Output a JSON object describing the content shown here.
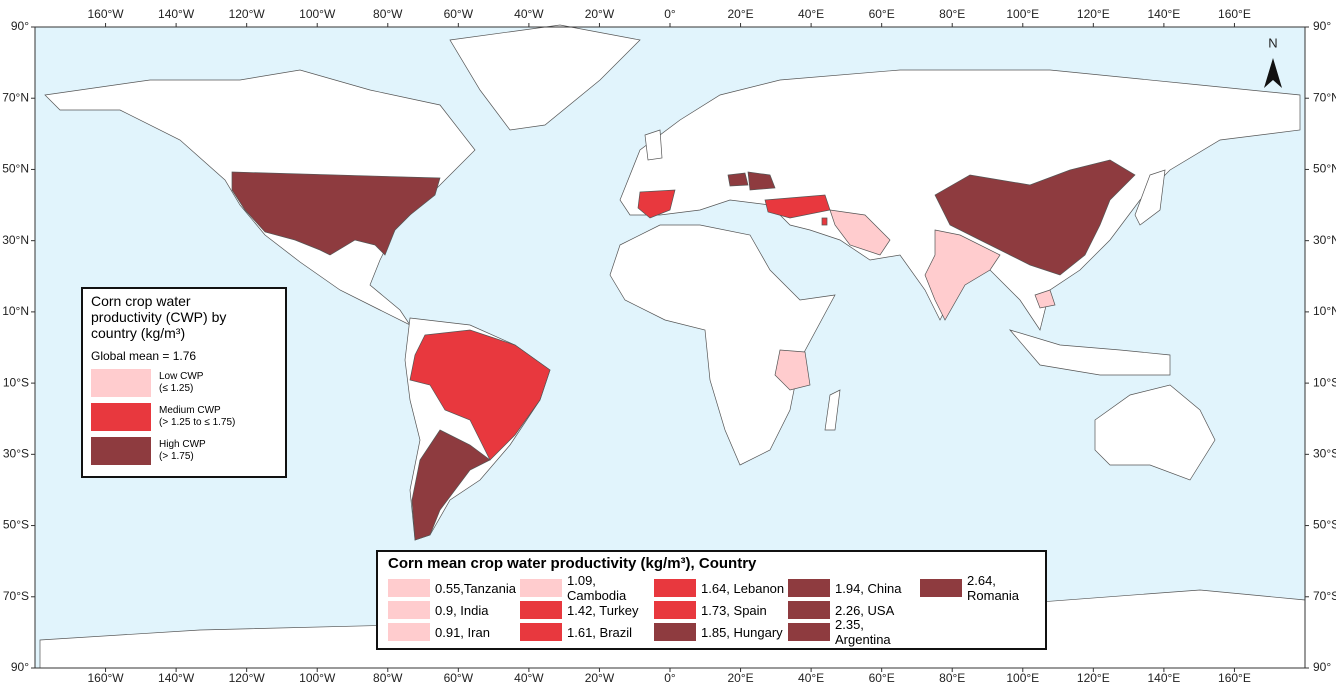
{
  "map": {
    "north_label": "N",
    "lon_ticks": [
      {
        "value": -160,
        "label": "160°W"
      },
      {
        "value": -140,
        "label": "140°W"
      },
      {
        "value": -120,
        "label": "120°W"
      },
      {
        "value": -100,
        "label": "100°W"
      },
      {
        "value": -80,
        "label": "80°W"
      },
      {
        "value": -60,
        "label": "60°W"
      },
      {
        "value": -40,
        "label": "40°W"
      },
      {
        "value": -20,
        "label": "20°W"
      },
      {
        "value": 0,
        "label": "0°"
      },
      {
        "value": 20,
        "label": "20°E"
      },
      {
        "value": 40,
        "label": "40°E"
      },
      {
        "value": 60,
        "label": "60°E"
      },
      {
        "value": 80,
        "label": "80°E"
      },
      {
        "value": 100,
        "label": "100°E"
      },
      {
        "value": 120,
        "label": "120°E"
      },
      {
        "value": 140,
        "label": "140°E"
      },
      {
        "value": 160,
        "label": "160°E"
      }
    ],
    "lat_ticks": [
      {
        "value": 90,
        "label": "90°"
      },
      {
        "value": 70,
        "label": "70°N"
      },
      {
        "value": 50,
        "label": "50°N"
      },
      {
        "value": 30,
        "label": "30°N"
      },
      {
        "value": 10,
        "label": "10°N"
      },
      {
        "value": -10,
        "label": "10°S"
      },
      {
        "value": -30,
        "label": "30°S"
      },
      {
        "value": -50,
        "label": "50°S"
      },
      {
        "value": -70,
        "label": "70°S"
      },
      {
        "value": -90,
        "label": "90°"
      }
    ],
    "ocean_color": "#e1f4fc",
    "land_color": "#ffffff"
  },
  "class_legend": {
    "title": "Corn crop water productivity (CWP) by country (kg/m³)",
    "global_mean": "Global mean = 1.76",
    "classes": [
      {
        "name": "Low CWP",
        "range": "(≤ 1.25)",
        "color": "#ffccce"
      },
      {
        "name": "Medium CWP",
        "range": "(> 1.25 to  ≤ 1.75)",
        "color": "#e8383e"
      },
      {
        "name": "High CWP",
        "range": "(> 1.75)",
        "color": "#8e3b3f"
      }
    ]
  },
  "country_table": {
    "title": "Corn mean crop water productivity (kg/m³), Country",
    "entries": [
      {
        "label": "0.55,Tanzania",
        "color": "#ffccce"
      },
      {
        "label": "0.9, India",
        "color": "#ffccce"
      },
      {
        "label": "0.91, Iran",
        "color": "#ffccce"
      },
      {
        "label": "1.09, Cambodia",
        "color": "#ffccce"
      },
      {
        "label": "1.42, Turkey",
        "color": "#e8383e"
      },
      {
        "label": "1.61, Brazil",
        "color": "#e8383e"
      },
      {
        "label": "1.64, Lebanon",
        "color": "#e8383e"
      },
      {
        "label": "1.73, Spain",
        "color": "#e8383e"
      },
      {
        "label": "1.85, Hungary",
        "color": "#8e3b3f"
      },
      {
        "label": "1.94, China",
        "color": "#8e3b3f"
      },
      {
        "label": "2.26, USA",
        "color": "#8e3b3f"
      },
      {
        "label": "2.35, Argentina",
        "color": "#8e3b3f"
      },
      {
        "label": "2.64, Romania",
        "color": "#8e3b3f"
      }
    ]
  }
}
